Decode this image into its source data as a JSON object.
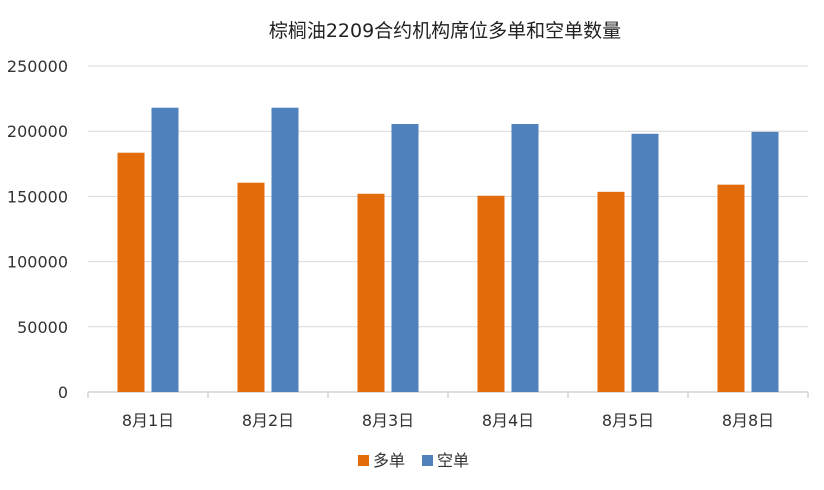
{
  "chart_data": {
    "type": "bar",
    "title": "棕榈油2209合约机构席位多单和空单数量",
    "xlabel": "",
    "ylabel": "",
    "categories": [
      "8月1日",
      "8月2日",
      "8月3日",
      "8月4日",
      "8月5日",
      "8月8日"
    ],
    "series": [
      {
        "name": "多单",
        "color": "#E36C0A",
        "values": [
          183500,
          160500,
          152000,
          150500,
          153500,
          159000
        ]
      },
      {
        "name": "空单",
        "color": "#4F81BD",
        "values": [
          218000,
          218000,
          205500,
          205500,
          198000,
          199500
        ]
      }
    ],
    "ylim": [
      0,
      250000
    ],
    "yticks": [
      "0",
      "50000",
      "100000",
      "150000",
      "200000",
      "250000"
    ],
    "grid": true,
    "legend_position": "bottom"
  }
}
